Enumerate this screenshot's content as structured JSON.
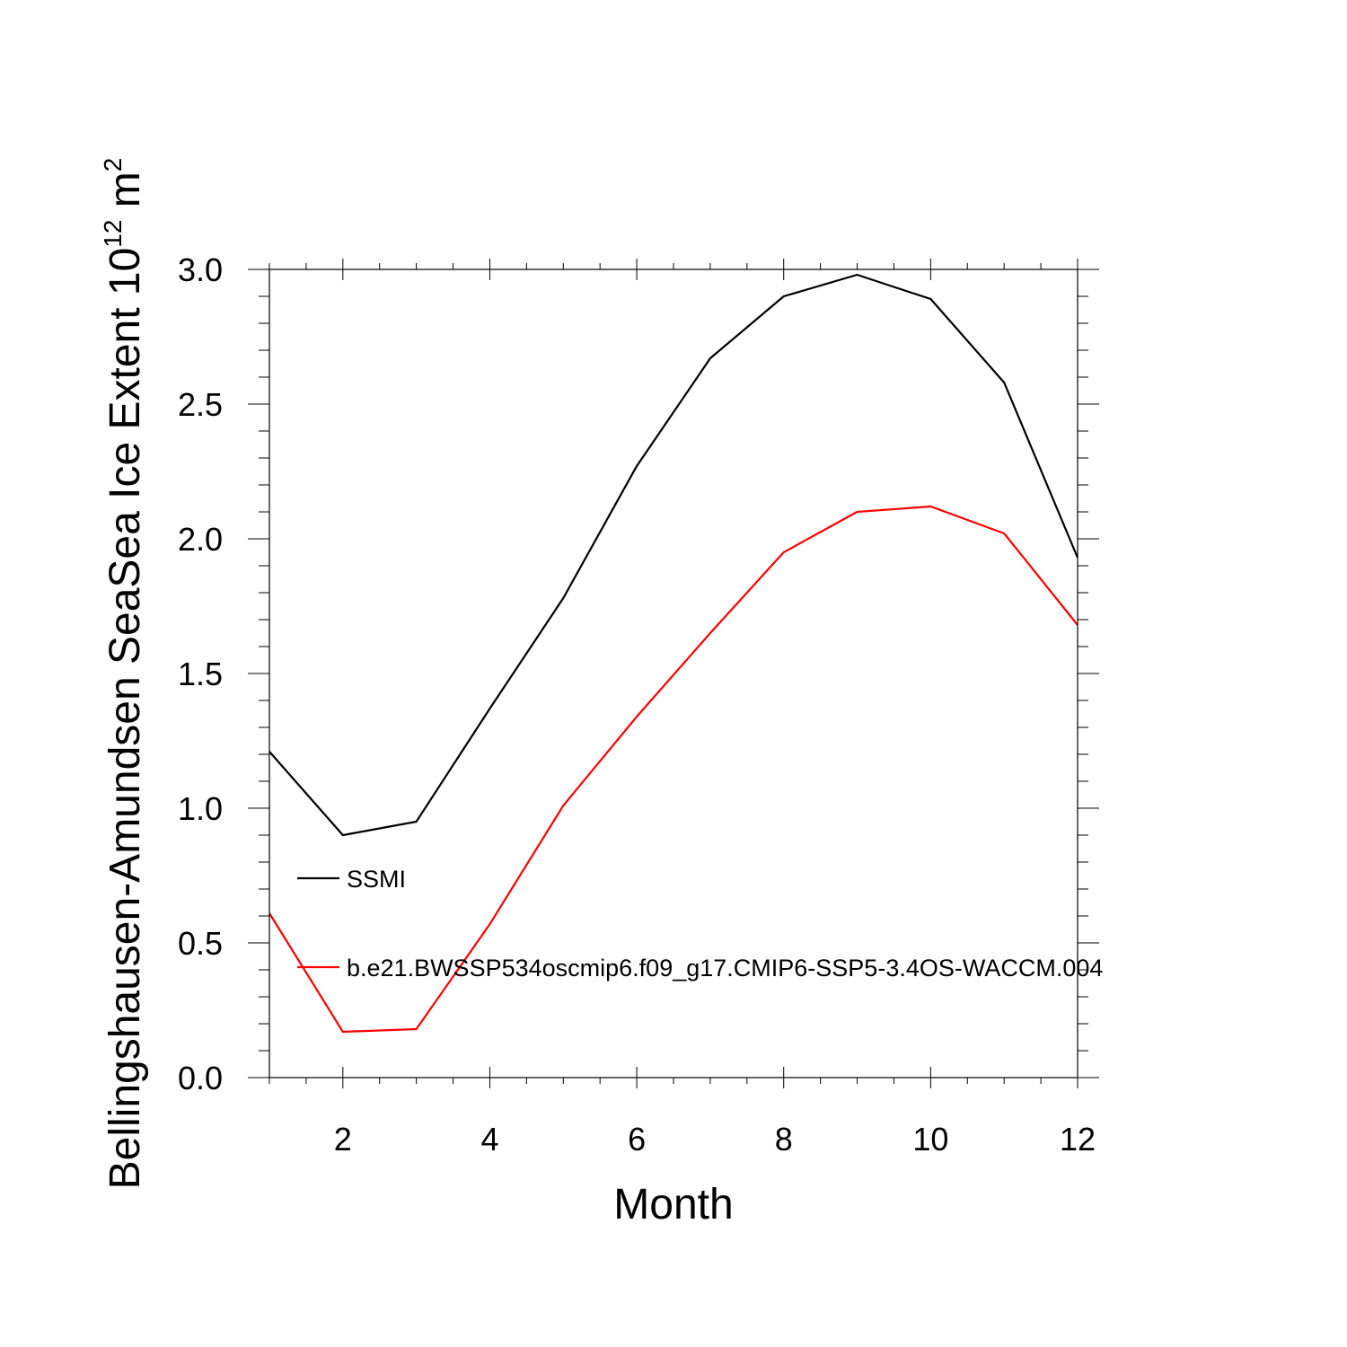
{
  "chart_data": {
    "type": "line",
    "xlabel": "Month",
    "ylabel": "Bellingshausen-Amundsen SeaSea Ice Extent 10",
    "ylabel_exponent": "12",
    "ylabel_unit": " m",
    "ylabel_unit_exponent": "2",
    "xlim": [
      1,
      12
    ],
    "ylim": [
      0,
      3
    ],
    "x_ticks": [
      2,
      4,
      6,
      8,
      10,
      12
    ],
    "x_tick_labels": [
      "2",
      "4",
      "6",
      "8",
      "10",
      "12"
    ],
    "y_ticks": [
      0,
      0.5,
      1,
      1.5,
      2,
      2.5,
      3
    ],
    "y_tick_labels": [
      "0.0",
      "0.5",
      "1.0",
      "1.5",
      "2.0",
      "2.5",
      "3.0"
    ],
    "grid": false,
    "legend_position": "inside-left",
    "x": [
      1,
      2,
      3,
      4,
      5,
      6,
      7,
      8,
      9,
      10,
      11,
      12
    ],
    "series": [
      {
        "name": "SSMI",
        "color": "#000000",
        "values": [
          1.21,
          0.9,
          0.95,
          1.37,
          1.78,
          2.27,
          2.67,
          2.9,
          2.98,
          2.89,
          2.58,
          1.93
        ]
      },
      {
        "name": "b.e21.BWSSP534oscmip6.f09_g17.CMIP6-SSP5-3.4OS-WACCM.004",
        "color": "#ff0000",
        "values": [
          0.61,
          0.17,
          0.18,
          0.57,
          1.01,
          1.34,
          1.65,
          1.95,
          2.1,
          2.12,
          2.02,
          1.68
        ]
      }
    ]
  }
}
